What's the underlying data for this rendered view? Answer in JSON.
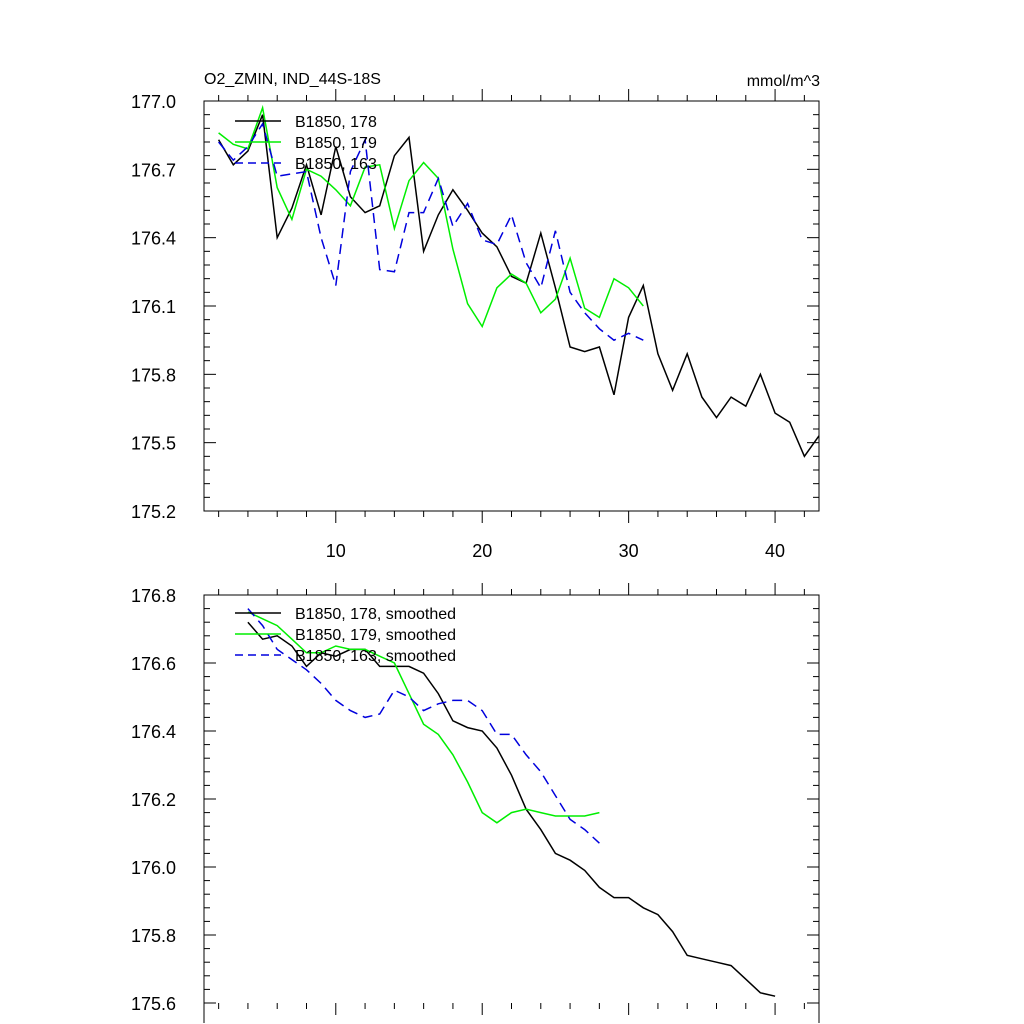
{
  "chart_data": [
    {
      "type": "line",
      "title": "O2_ZMIN, IND_44S-18S",
      "units": "mmol/m^3",
      "xlim": [
        1,
        43
      ],
      "ylim": [
        175.2,
        177.0
      ],
      "xticks": [
        10,
        20,
        30,
        40
      ],
      "xtick_labels": [
        "10",
        "20",
        "30",
        "40"
      ],
      "yticks": [
        175.2,
        175.5,
        175.8,
        176.1,
        176.4,
        176.7,
        177.0
      ],
      "ytick_labels": [
        "175.2",
        "175.5",
        "175.8",
        "176.1",
        "176.4",
        "176.7",
        "177.0"
      ],
      "grid": false,
      "legend_position": "top-left",
      "series": [
        {
          "name": "B1850, 178",
          "color": "#000000",
          "dash": "solid",
          "x": [
            2,
            3,
            4,
            5,
            6,
            7,
            8,
            9,
            10,
            11,
            12,
            13,
            14,
            15,
            16,
            17,
            18,
            19,
            20,
            21,
            22,
            23,
            24,
            25,
            26,
            27,
            28,
            29,
            30,
            31,
            32,
            33,
            34,
            35,
            36,
            37,
            38,
            39,
            40,
            41,
            42,
            43
          ],
          "y": [
            176.83,
            176.72,
            176.78,
            176.94,
            176.4,
            176.53,
            176.72,
            176.5,
            176.8,
            176.58,
            176.51,
            176.54,
            176.76,
            176.84,
            176.34,
            176.5,
            176.61,
            176.52,
            176.42,
            176.36,
            176.23,
            176.2,
            176.42,
            176.18,
            175.92,
            175.9,
            175.92,
            175.71,
            176.05,
            176.19,
            175.89,
            175.73,
            175.89,
            175.7,
            175.61,
            175.7,
            175.66,
            175.8,
            175.63,
            175.59,
            175.44,
            175.53
          ]
        },
        {
          "name": "B1850, 179",
          "color": "#00ee00",
          "dash": "solid",
          "x": [
            2,
            3,
            4,
            5,
            6,
            7,
            8,
            9,
            10,
            11,
            12,
            13,
            14,
            15,
            16,
            17,
            18,
            19,
            20,
            21,
            22,
            23,
            24,
            25,
            26,
            27,
            28,
            29,
            30,
            31
          ],
          "y": [
            176.86,
            176.81,
            176.79,
            176.97,
            176.62,
            176.48,
            176.7,
            176.67,
            176.61,
            176.54,
            176.71,
            176.72,
            176.44,
            176.65,
            176.73,
            176.66,
            176.35,
            176.11,
            176.01,
            176.18,
            176.24,
            176.2,
            176.07,
            176.13,
            176.31,
            176.09,
            176.05,
            176.22,
            176.18,
            176.1
          ]
        },
        {
          "name": "B1850, 163",
          "color": "#0000dd",
          "dash": "dashed",
          "x": [
            2,
            3,
            4,
            5,
            6,
            7,
            8,
            9,
            10,
            11,
            12,
            13,
            14,
            15,
            16,
            17,
            18,
            19,
            20,
            21,
            22,
            23,
            24,
            25,
            26,
            27,
            28,
            29,
            30,
            31
          ],
          "y": [
            176.82,
            176.74,
            176.8,
            176.9,
            176.67,
            176.68,
            176.69,
            176.4,
            176.19,
            176.69,
            176.83,
            176.26,
            176.25,
            176.51,
            176.51,
            176.66,
            176.45,
            176.55,
            176.39,
            176.37,
            176.5,
            176.29,
            176.18,
            176.43,
            176.16,
            176.07,
            176.0,
            175.95,
            175.98,
            175.95
          ]
        }
      ]
    },
    {
      "type": "line",
      "title": "",
      "xlim": [
        1,
        43
      ],
      "ylim": [
        175.6,
        176.8
      ],
      "yticks": [
        175.6,
        175.8,
        176.0,
        176.2,
        176.4,
        176.6,
        176.8
      ],
      "ytick_labels": [
        "175.6",
        "175.8",
        "176.0",
        "176.2",
        "176.4",
        "176.6",
        "176.8"
      ],
      "grid": false,
      "legend_position": "top-left",
      "series": [
        {
          "name": "B1850, 178, smoothed",
          "color": "#000000",
          "dash": "solid",
          "x": [
            4,
            5,
            6,
            7,
            8,
            9,
            10,
            11,
            12,
            13,
            14,
            15,
            16,
            17,
            18,
            19,
            20,
            21,
            22,
            23,
            24,
            25,
            26,
            27,
            28,
            29,
            30,
            31,
            32,
            33,
            34,
            35,
            36,
            37,
            38,
            39,
            40
          ],
          "y": [
            176.72,
            176.67,
            176.68,
            176.65,
            176.59,
            176.63,
            176.62,
            176.64,
            176.64,
            176.59,
            176.59,
            176.59,
            176.57,
            176.51,
            176.43,
            176.41,
            176.4,
            176.35,
            176.27,
            176.17,
            176.11,
            176.04,
            176.02,
            175.99,
            175.94,
            175.91,
            175.91,
            175.88,
            175.86,
            175.81,
            175.74,
            175.73,
            175.72,
            175.71,
            175.67,
            175.63,
            175.62
          ]
        },
        {
          "name": "B1850, 179, smoothed",
          "color": "#00ee00",
          "dash": "solid",
          "x": [
            4,
            5,
            6,
            7,
            8,
            9,
            10,
            11,
            12,
            13,
            14,
            15,
            16,
            17,
            18,
            19,
            20,
            21,
            22,
            23,
            24,
            25,
            26,
            27,
            28
          ],
          "y": [
            176.75,
            176.73,
            176.71,
            176.67,
            176.63,
            176.63,
            176.65,
            176.64,
            176.64,
            176.62,
            176.6,
            176.51,
            176.42,
            176.39,
            176.33,
            176.25,
            176.16,
            176.13,
            176.16,
            176.17,
            176.16,
            176.15,
            176.15,
            176.15,
            176.16
          ]
        },
        {
          "name": "B1850, 163, smoothed",
          "color": "#0000dd",
          "dash": "dashed",
          "x": [
            4,
            5,
            6,
            7,
            8,
            9,
            10,
            11,
            12,
            13,
            14,
            15,
            16,
            17,
            18,
            19,
            20,
            21,
            22,
            23,
            24,
            25,
            26,
            27,
            28
          ],
          "y": [
            176.76,
            176.71,
            176.64,
            176.61,
            176.58,
            176.54,
            176.49,
            176.46,
            176.44,
            176.45,
            176.52,
            176.5,
            176.46,
            176.48,
            176.49,
            176.49,
            176.46,
            176.39,
            176.39,
            176.33,
            176.28,
            176.21,
            176.14,
            176.11,
            176.07
          ]
        }
      ]
    }
  ]
}
